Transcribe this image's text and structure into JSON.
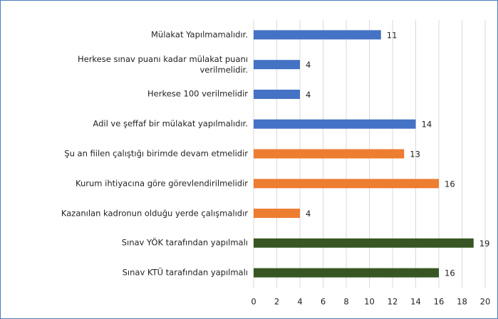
{
  "chart_data": {
    "type": "bar",
    "orientation": "horizontal",
    "categories": [
      "Mülakat Yapılmamalıdır.",
      "Herkese sınav puanı kadar mülakat puanı verilmelidir.",
      "Herkese 100 verilmelidir",
      "Adil ve şeffaf bir mülakat yapılmalıdır.",
      "Şu an fiilen çalıştığı birimde devam etmelidir",
      "Kurum ihtiyacına göre görevlendirilmelidir",
      "Kazanılan kadronun olduğu yerde çalışmalıdır",
      "Sınav YÖK tarafından yapılmalı",
      "Sınav KTÜ tarafından yapılmalı"
    ],
    "values": [
      11,
      4,
      4,
      14,
      13,
      16,
      4,
      19,
      16
    ],
    "colors": [
      "#4472c4",
      "#4472c4",
      "#4472c4",
      "#4472c4",
      "#ed7d31",
      "#ed7d31",
      "#ed7d31",
      "#375623",
      "#375623"
    ],
    "xlim": [
      0,
      20
    ],
    "xticks": [
      0,
      2,
      4,
      6,
      8,
      10,
      12,
      14,
      16,
      18,
      20
    ],
    "grid": true
  }
}
